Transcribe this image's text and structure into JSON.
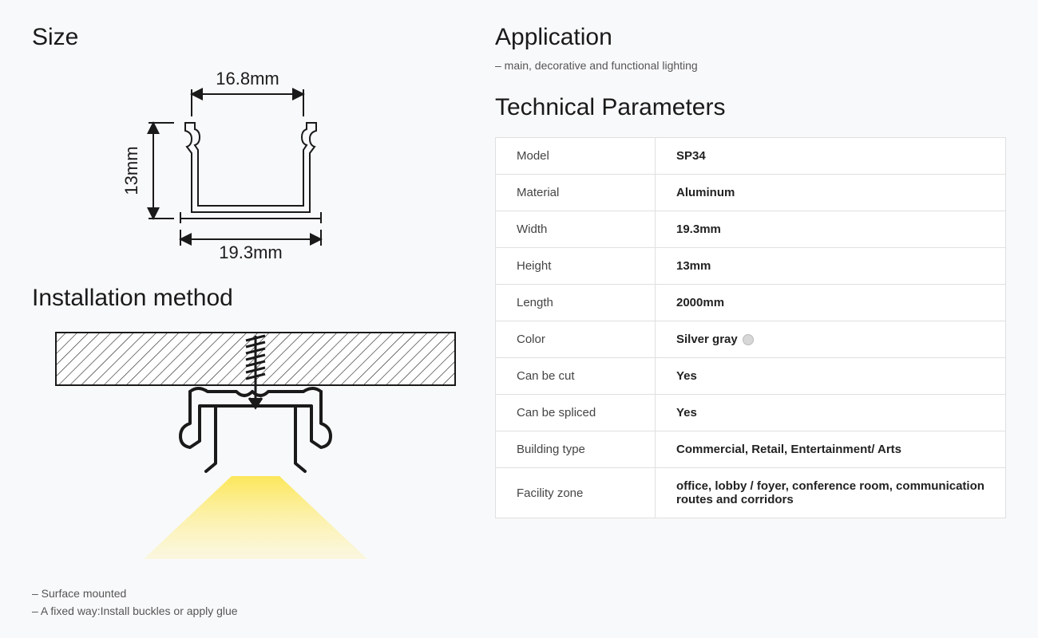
{
  "size": {
    "heading": "Size",
    "top_width_label": "16.8mm",
    "bottom_width_label": "19.3mm",
    "height_label": "13mm",
    "label_fontsize": 22,
    "stroke_color": "#1a1a1a",
    "stroke_width": 2
  },
  "installation": {
    "heading": "Installation method",
    "bullets": [
      "– Surface mounted",
      "– A fixed way:Install buckles or apply glue"
    ],
    "hatch_fill": "#ffffff",
    "hatch_stroke": "#1a1a1a",
    "bracket_stroke": "#1a1a1a",
    "bracket_stroke_width": 4,
    "light_gradient_top": "#fce75a",
    "light_gradient_bottom": "#fff4b8"
  },
  "application": {
    "heading": "Application",
    "text": "– main, decorative and functional lighting"
  },
  "params": {
    "heading": "Technical Parameters",
    "border_color": "#e0e0e0",
    "header_fontsize": 15,
    "rows": [
      {
        "k": "Model",
        "v": "SP34"
      },
      {
        "k": "Material",
        "v": "Aluminum"
      },
      {
        "k": "Width",
        "v": "19.3mm"
      },
      {
        "k": "Height",
        "v": "13mm"
      },
      {
        "k": "Length",
        "v": "2000mm"
      },
      {
        "k": "Color",
        "v": "Silver gray",
        "swatch": "#d7d7d7"
      },
      {
        "k": "Can be cut",
        "v": "Yes"
      },
      {
        "k": "Can be spliced",
        "v": "Yes"
      },
      {
        "k": "Building type",
        "v": "Commercial, Retail, Entertainment/ Arts"
      },
      {
        "k": "Facility zone",
        "v": "office, lobby / foyer, conference room, communication routes and corridors"
      }
    ]
  }
}
